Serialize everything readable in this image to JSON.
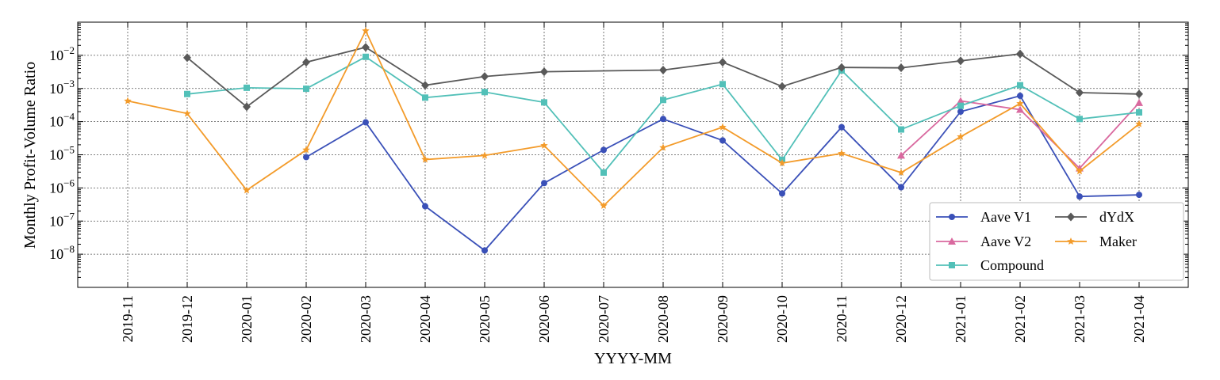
{
  "chart_data": {
    "type": "line",
    "title": "",
    "xlabel": "YYYY-MM",
    "ylabel": "Monthly Profit-Volume Ratio",
    "yscale": "log",
    "ylim": [
      1e-09,
      0.1
    ],
    "ytick_labels": [
      {
        "base": "10",
        "exp": "−2"
      },
      {
        "base": "10",
        "exp": "−3"
      },
      {
        "base": "10",
        "exp": "−4"
      },
      {
        "base": "10",
        "exp": "−5"
      },
      {
        "base": "10",
        "exp": "−6"
      },
      {
        "base": "10",
        "exp": "−7"
      },
      {
        "base": "10",
        "exp": "−8"
      }
    ],
    "ytick_values": [
      0.01,
      0.001,
      0.0001,
      1e-05,
      1e-06,
      1e-07,
      1e-08
    ],
    "grid": true,
    "legend_position": "lower-right",
    "categories": [
      "2019-11",
      "2019-12",
      "2020-01",
      "2020-02",
      "2020-03",
      "2020-04",
      "2020-05",
      "2020-06",
      "2020-07",
      "2020-08",
      "2020-09",
      "2020-10",
      "2020-11",
      "2020-12",
      "2021-01",
      "2021-02",
      "2021-03",
      "2021-04"
    ],
    "series": [
      {
        "name": "Aave V1",
        "color": "#3a50b8",
        "marker": "circle",
        "values": [
          null,
          null,
          null,
          8.5e-06,
          9.5e-05,
          2.8e-07,
          1.3e-08,
          1.4e-06,
          1.4e-05,
          0.00012,
          2.7e-05,
          6.8e-07,
          6.8e-05,
          1.05e-06,
          0.0002,
          0.0006,
          5.5e-07,
          6.2e-07
        ]
      },
      {
        "name": "Aave V2",
        "color": "#d9699f",
        "marker": "triangle",
        "values": [
          null,
          null,
          null,
          null,
          null,
          null,
          null,
          null,
          null,
          null,
          null,
          null,
          null,
          9.5e-06,
          0.00042,
          0.00023,
          3.9e-06,
          0.00037
        ]
      },
      {
        "name": "Compound",
        "color": "#52c0b8",
        "marker": "square",
        "values": [
          null,
          0.00068,
          0.00105,
          0.00098,
          0.009,
          0.00053,
          0.00078,
          0.00038,
          2.9e-06,
          0.00045,
          0.00135,
          7e-06,
          0.0035,
          5.8e-05,
          0.0003,
          0.00125,
          0.00012,
          0.00019
        ]
      },
      {
        "name": "dYdX",
        "color": "#595959",
        "marker": "diamond",
        "values": [
          null,
          0.0085,
          0.00028,
          0.0062,
          0.0175,
          0.00125,
          0.0023,
          0.0032,
          null,
          0.0036,
          0.0062,
          0.00115,
          0.0043,
          0.0042,
          0.0068,
          0.011,
          0.00075,
          0.00068
        ]
      },
      {
        "name": "Maker",
        "color": "#f39b2a",
        "marker": "star",
        "values": [
          0.00042,
          0.000175,
          8.5e-07,
          1.4e-05,
          0.055,
          7.2e-06,
          9.5e-06,
          1.9e-05,
          2.9e-07,
          1.65e-05,
          6.8e-05,
          5.6e-06,
          1.1e-05,
          2.9e-06,
          3.5e-05,
          0.00035,
          3.2e-06,
          8.5e-05
        ]
      }
    ]
  }
}
